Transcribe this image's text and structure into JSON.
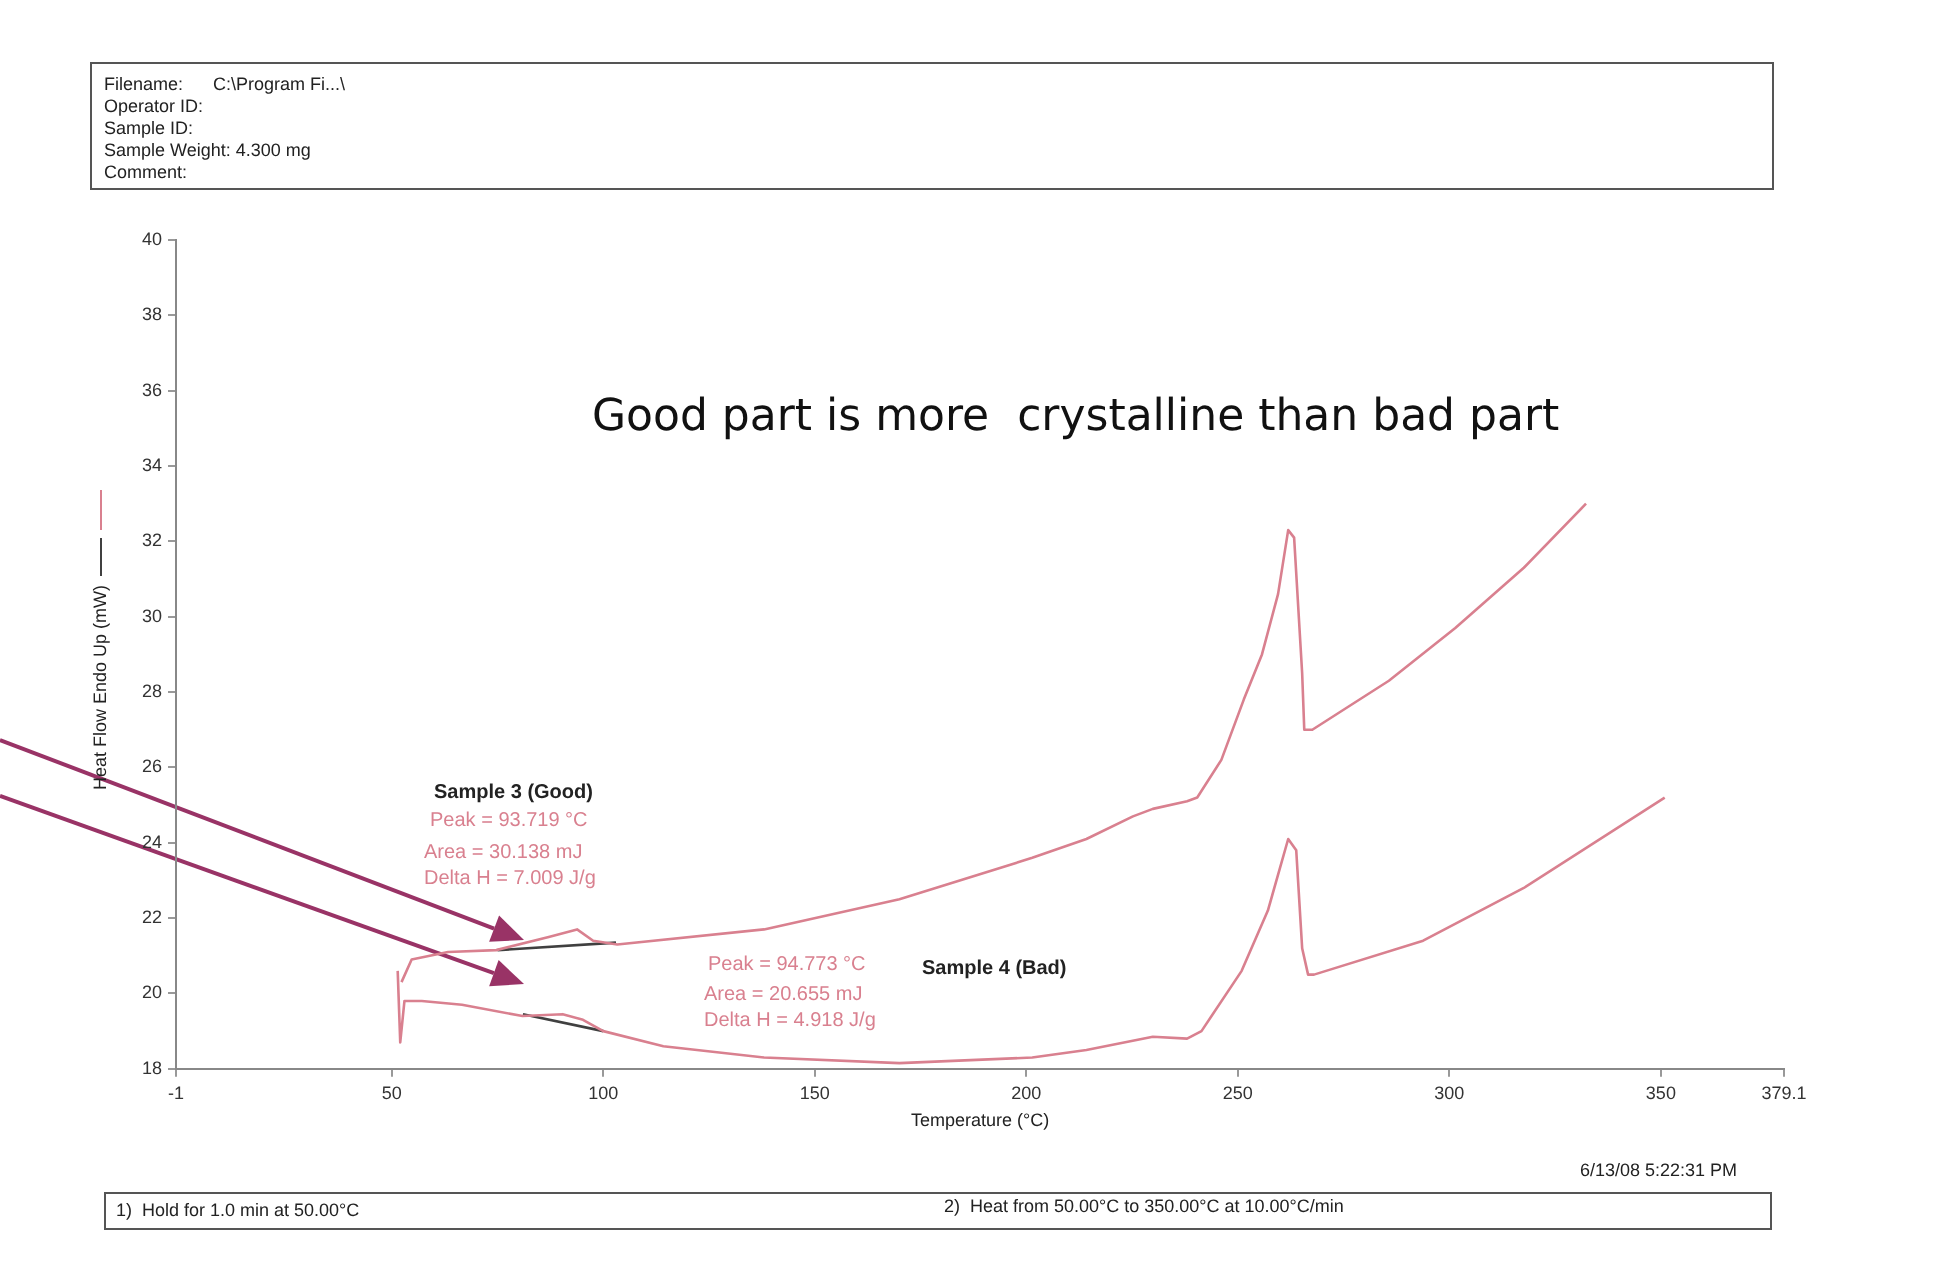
{
  "chart_data": {
    "type": "line",
    "xlabel": "Temperature (°C)",
    "ylabel": "Heat Flow Endo Up (mW)",
    "xlim": [
      -1,
      379.1
    ],
    "xticks": [
      -1,
      50,
      100,
      150,
      200,
      250,
      300,
      350,
      379.1
    ],
    "ylim": [
      18,
      40
    ],
    "yticks": [
      18,
      20,
      22,
      24,
      26,
      28,
      30,
      32,
      34,
      36,
      38,
      40
    ],
    "marker": "none",
    "grid": false,
    "legend": false,
    "series": [
      {
        "color": "#d9808f",
        "x": [
          52.3,
          54.7,
          63.3,
          74.7,
          87.1,
          93.8,
          97.6,
          103.3,
          138,
          170,
          201.4,
          214.2,
          225.2,
          229.9,
          238,
          240.4,
          246.1,
          251.4,
          255.7,
          259.5,
          261.9,
          263.3,
          265.2,
          265.7,
          267.6,
          285.7,
          301.4,
          317.6,
          332.3
        ],
        "values": [
          20.3,
          20.9,
          21.1,
          21.15,
          21.5,
          21.7,
          21.4,
          21.3,
          21.7,
          22.5,
          23.6,
          24.1,
          24.7,
          24.9,
          25.1,
          25.2,
          26.2,
          27.8,
          29.0,
          30.6,
          32.3,
          32.1,
          28.5,
          27.0,
          27.0,
          28.3,
          29.7,
          31.3,
          33.0
        ]
      },
      {
        "color": "#d9808f",
        "x": [
          51.4,
          52,
          53,
          57.1,
          66.6,
          80.9,
          90.4,
          95.2,
          100,
          114.2,
          138,
          170,
          201.4,
          214.2,
          229.9,
          238,
          241.4,
          250.9,
          257.1,
          261.9,
          263.8,
          265.2,
          266.6,
          268,
          293.8,
          317.6,
          350.9
        ],
        "values": [
          20.6,
          18.7,
          19.8,
          19.8,
          19.7,
          19.4,
          19.45,
          19.3,
          19.0,
          18.6,
          18.3,
          18.15,
          18.3,
          18.5,
          18.85,
          18.8,
          19.0,
          20.6,
          22.2,
          24.1,
          23.8,
          21.2,
          20.5,
          20.5,
          21.4,
          22.8,
          25.2
        ]
      },
      {
        "color": "#404040",
        "x": [
          75,
          103
        ],
        "values": [
          21.15,
          21.35
        ]
      },
      {
        "color": "#404040",
        "x": [
          81,
          100
        ],
        "values": [
          19.45,
          19.0
        ]
      }
    ],
    "annotations": [
      "Filename:      C:\\Program Fi...\\",
      "Operator ID:",
      "Sample ID:",
      "Sample Weight: 4.300 mg",
      "Comment:",
      "Good part is more  crystalline than bad part",
      "Sample 3 (Good)",
      "Peak = 93.719 °C",
      "Area = 30.138 mJ",
      "Delta H = 7.009 J/g",
      "Peak = 94.773 °C",
      "Sample 4 (Bad)",
      "Area = 20.655 mJ",
      "Delta H = 4.918 J/g",
      "6/13/08 5:22:31 PM",
      "1)  Hold for 1.0 min at 50.00°C",
      "2)  Heat from 50.00°C to 350.00°C at 10.00°C/min"
    ]
  }
}
